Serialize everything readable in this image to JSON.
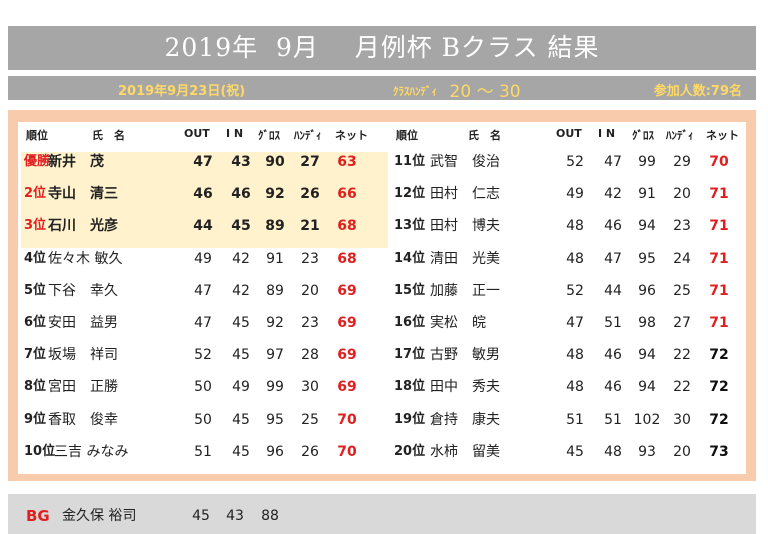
{
  "title": {
    "year": "2019年",
    "month": "9月",
    "event": "月例杯 Bクラス 結果"
  },
  "info": {
    "date": "2019年9月23日(祝)",
    "handicap_label": "ｸﾗｽﾊﾝﾃﾞｨ",
    "handicap_value": "20 ～ 30",
    "participants": "参加人数:79名"
  },
  "headers": {
    "rank": "順位",
    "name": "氏　名",
    "out": "OUT",
    "in": "I N",
    "gross": "ｸﾞﾛｽ",
    "handi": "ﾊﾝﾃﾞｨ",
    "net": "ネット"
  },
  "left": [
    {
      "rank": "優勝",
      "name": "新井　茂",
      "out": "47",
      "in": "43",
      "gross": "90",
      "handi": "27",
      "net": "63"
    },
    {
      "rank": "2位",
      "name": "寺山　清三",
      "out": "46",
      "in": "46",
      "gross": "92",
      "handi": "26",
      "net": "66"
    },
    {
      "rank": "3位",
      "name": "石川　光彦",
      "out": "44",
      "in": "45",
      "gross": "89",
      "handi": "21",
      "net": "68"
    },
    {
      "rank": "4位",
      "name": "佐々木 敏久",
      "out": "49",
      "in": "42",
      "gross": "91",
      "handi": "23",
      "net": "68"
    },
    {
      "rank": "5位",
      "name": "下谷　幸久",
      "out": "47",
      "in": "42",
      "gross": "89",
      "handi": "20",
      "net": "69"
    },
    {
      "rank": "6位",
      "name": "安田　益男",
      "out": "47",
      "in": "45",
      "gross": "92",
      "handi": "23",
      "net": "69"
    },
    {
      "rank": "7位",
      "name": "坂場　祥司",
      "out": "52",
      "in": "45",
      "gross": "97",
      "handi": "28",
      "net": "69"
    },
    {
      "rank": "8位",
      "name": "宮田　正勝",
      "out": "50",
      "in": "49",
      "gross": "99",
      "handi": "30",
      "net": "69"
    },
    {
      "rank": "9位",
      "name": "香取　俊幸",
      "out": "50",
      "in": "45",
      "gross": "95",
      "handi": "25",
      "net": "70"
    },
    {
      "rank": "10位",
      "name": "三吉 みなみ",
      "out": "51",
      "in": "45",
      "gross": "96",
      "handi": "26",
      "net": "70"
    }
  ],
  "right": [
    {
      "rank": "11位",
      "name": "武智　俊治",
      "out": "52",
      "in": "47",
      "gross": "99",
      "handi": "29",
      "net": "70"
    },
    {
      "rank": "12位",
      "name": "田村　仁志",
      "out": "49",
      "in": "42",
      "gross": "91",
      "handi": "20",
      "net": "71"
    },
    {
      "rank": "13位",
      "name": "田村　博夫",
      "out": "48",
      "in": "46",
      "gross": "94",
      "handi": "23",
      "net": "71"
    },
    {
      "rank": "14位",
      "name": "清田　光美",
      "out": "48",
      "in": "47",
      "gross": "95",
      "handi": "24",
      "net": "71"
    },
    {
      "rank": "15位",
      "name": "加藤　正一",
      "out": "52",
      "in": "44",
      "gross": "96",
      "handi": "25",
      "net": "71"
    },
    {
      "rank": "16位",
      "name": "実松　皖",
      "out": "47",
      "in": "51",
      "gross": "98",
      "handi": "27",
      "net": "71"
    },
    {
      "rank": "17位",
      "name": "古野　敏男",
      "out": "48",
      "in": "46",
      "gross": "94",
      "handi": "22",
      "net": "72"
    },
    {
      "rank": "18位",
      "name": "田中　秀夫",
      "out": "48",
      "in": "46",
      "gross": "94",
      "handi": "22",
      "net": "72"
    },
    {
      "rank": "19位",
      "name": "倉持　康夫",
      "out": "51",
      "in": "51",
      "gross": "102",
      "handi": "30",
      "net": "72"
    },
    {
      "rank": "20位",
      "name": "水柿　留美",
      "out": "45",
      "in": "48",
      "gross": "93",
      "handi": "20",
      "net": "73"
    }
  ],
  "bg": {
    "label": "BG",
    "name": "金久保 裕司",
    "out": "45",
    "in": "43",
    "gross": "88"
  },
  "colors": {
    "accent_red": "#e02020",
    "panel": "#f8cbad",
    "highlight": "#fff2cc",
    "bar": "#a6a6a6",
    "gold": "#ffd966"
  }
}
